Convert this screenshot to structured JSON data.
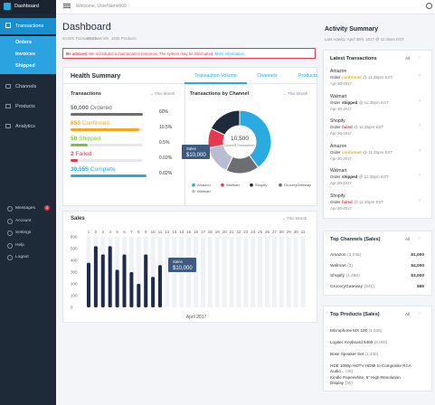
{
  "brand": "Dashboard",
  "nav_main_top": "Transactions",
  "nav_sub": [
    "Orders",
    "Invoices",
    "Shipped"
  ],
  "nav_main": [
    "Channels",
    "Products",
    "Analytics"
  ],
  "nav_bottom": [
    "Messages",
    "Account",
    "Settings",
    "Help",
    "Logout"
  ],
  "messages_badge": "4",
  "topbar": {
    "welcome": "Welcome, UserName009"
  },
  "header": {
    "title": "Dashboard",
    "stats": [
      "50,000 Transactions",
      "56 Channels",
      "1936 Products"
    ]
  },
  "alert": {
    "label": "Be advised:",
    "text": "We scheduled a maintenance tomorrow. The system may be interrupted.",
    "link": "More information."
  },
  "health": {
    "title": "Health Summary",
    "tabs": [
      "Transaction Volume",
      "Channels",
      "Products"
    ],
    "transactions": {
      "title": "Transactions",
      "period": "This Month",
      "rows": [
        {
          "count": "50,000",
          "label": "Ordered",
          "percent": "60%",
          "color": "#6d6e71",
          "bar": 100
        },
        {
          "count": "650",
          "label": "Confirmed",
          "percent": "10.5%",
          "color": "#f5a623",
          "bar": 95
        },
        {
          "count": "50",
          "label": "Shipped",
          "percent": "0.5%",
          "color": "#7bc043",
          "bar": 24
        },
        {
          "count": "2",
          "label": "Failed",
          "percent": "0.02%",
          "color": "#e8384f",
          "bar": 10
        },
        {
          "count": "30,555",
          "label": "Complete",
          "percent": "0.02%",
          "color": "#29abe2",
          "bar": 105
        }
      ]
    }
  },
  "channel_chart": {
    "title": "Transactions by Channel",
    "period": "This Month",
    "center_value": "10,500",
    "center_label": "Ordered Transactions",
    "tooltip_label": "Sales",
    "tooltip_value": "$10,000",
    "segments": [
      {
        "name": "Amazon",
        "color": "#29abe2",
        "value": 40
      },
      {
        "name": "Walmart",
        "color": "#e8384f",
        "value": 10
      },
      {
        "name": "Shopify",
        "color": "#1e2b3c",
        "value": 18
      },
      {
        "name": "GroceryGateway",
        "color": "#6d6e71",
        "value": 17
      },
      {
        "name": "Walmart",
        "color": "#b8bdd1",
        "value": 15
      }
    ]
  },
  "sales": {
    "title": "Sales",
    "period": "This Month",
    "xlabel": "April 2017",
    "color": "#1e2b4f",
    "tooltip_label": "Sales",
    "tooltip_value": "$10,000",
    "x": [
      1,
      2,
      3,
      4,
      5,
      6,
      7,
      8,
      9,
      10,
      11,
      12,
      13,
      14,
      15,
      16,
      17,
      18,
      19,
      20,
      21,
      22,
      23,
      24,
      25,
      26,
      27,
      28,
      29,
      30,
      31
    ],
    "values": [
      380,
      520,
      450,
      520,
      320,
      450,
      300,
      200,
      450,
      260,
      360,
      null,
      null,
      null,
      null,
      null,
      null,
      null,
      null,
      null,
      null,
      null,
      null,
      null,
      null,
      null,
      null,
      null,
      null,
      null,
      null
    ],
    "ylim": [
      0,
      600
    ],
    "yticks": [
      0,
      100,
      200,
      300,
      400,
      500,
      600
    ]
  },
  "activity": {
    "title": "Activity Summary",
    "last_label": "Last Activity:",
    "last_value": "April 30th, 2017 @ 11:35am EST",
    "latest": {
      "title": "Latest Transactions",
      "link": "All",
      "items": [
        {
          "channel": "Amazon",
          "prefix": "Order",
          "status": "confirmed",
          "color": "#f5a623",
          "time": "@ 11:35pm EST",
          "date": "Apr-30-2017"
        },
        {
          "channel": "Walmart",
          "prefix": "Order",
          "status": "shipped",
          "color": "#333333",
          "time": "@ 11:35pm EST",
          "date": "Apr-30-2017"
        },
        {
          "channel": "Shopify",
          "prefix": "Order",
          "status": "failed",
          "color": "#e8384f",
          "time": "@ 11:35pm EST",
          "date": "Apr-30-2017"
        },
        {
          "channel": "Amazon",
          "prefix": "Order",
          "status": "confirmed",
          "color": "#f5a623",
          "time": "@ 11:35pm EST",
          "date": "Apr-30-2017"
        },
        {
          "channel": "Walmart",
          "prefix": "Order",
          "status": "shipped",
          "color": "#333333",
          "time": "@ 11:35pm EST",
          "date": "Apr-30-2017"
        },
        {
          "channel": "Shopify",
          "prefix": "Order",
          "status": "failed",
          "color": "#e8384f",
          "time": "@ 11:35pm EST",
          "date": "Apr-30-2017"
        }
      ]
    },
    "top_channels": {
      "title": "Top Channels (Sales)",
      "link": "All",
      "items": [
        {
          "name": "Amazon",
          "count": "(3,045)",
          "value": "$1,000"
        },
        {
          "name": "Walmart",
          "count": "(3)",
          "value": "$4,000"
        },
        {
          "name": "Shopify",
          "count": "(4,466)",
          "value": "$3,000"
        },
        {
          "name": "GroceryGateway",
          "count": "(541)",
          "value": "$66"
        }
      ]
    },
    "top_products": {
      "title": "Top Products (Sales)",
      "link": "All",
      "items": [
        {
          "name": "Microphone MX 100",
          "count": "(1,045)"
        },
        {
          "name": "Logitec Keyboard 5400",
          "count": "(3,000)"
        },
        {
          "name": "Bose Speaker Set",
          "count": "(1,330)"
        },
        {
          "name": "HDE 1080p HDTV HDMI to Composite RCA Audio...",
          "count": "(45)"
        },
        {
          "name": "Kindle Paperwhite, 6\" High-Resolution Display",
          "count": "(35)"
        }
      ]
    }
  }
}
